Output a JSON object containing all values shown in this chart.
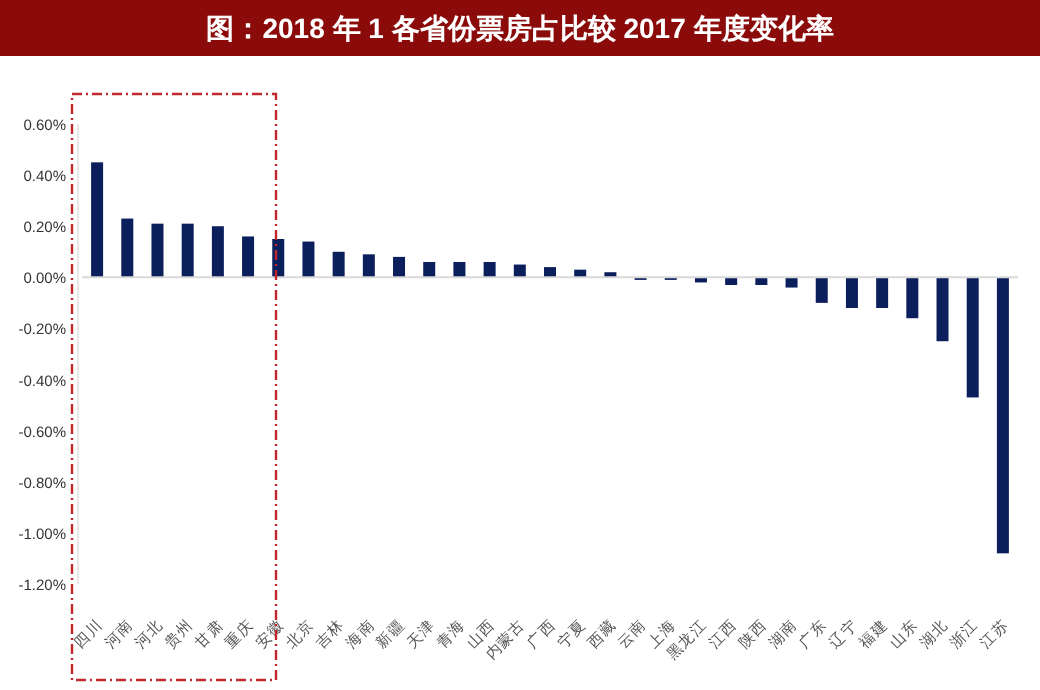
{
  "chart_data": {
    "type": "bar",
    "title": "图：2018 年 1 各省份票房占比较 2017 年度变化率",
    "categories": [
      "四川",
      "河南",
      "河北",
      "贵州",
      "甘肃",
      "重庆",
      "安徽",
      "北京",
      "吉林",
      "海南",
      "新疆",
      "天津",
      "青海",
      "山西",
      "内蒙古",
      "广西",
      "宁夏",
      "西藏",
      "云南",
      "上海",
      "黑龙江",
      "江西",
      "陕西",
      "湖南",
      "广东",
      "辽宁",
      "福建",
      "山东",
      "湖北",
      "浙江",
      "江苏"
    ],
    "values": [
      0.45,
      0.23,
      0.21,
      0.21,
      0.2,
      0.16,
      0.15,
      0.14,
      0.1,
      0.09,
      0.08,
      0.06,
      0.06,
      0.06,
      0.05,
      0.04,
      0.03,
      0.02,
      -0.01,
      -0.01,
      -0.02,
      -0.03,
      -0.03,
      -0.04,
      -0.1,
      -0.12,
      -0.12,
      -0.16,
      -0.25,
      -0.47,
      -1.08
    ],
    "color": "#0b1f5c",
    "ylim": [
      -1.2,
      0.6
    ],
    "yticks": [
      {
        "value": 0.6,
        "label": "0.60%"
      },
      {
        "value": 0.4,
        "label": "0.40%"
      },
      {
        "value": 0.2,
        "label": "0.20%"
      },
      {
        "value": 0,
        "label": "0.00%"
      },
      {
        "value": -0.2,
        "label": "-0.20%"
      },
      {
        "value": -0.4,
        "label": "-0.40%"
      },
      {
        "value": -0.6,
        "label": "-0.60%"
      },
      {
        "value": -0.8,
        "label": "-0.80%"
      },
      {
        "value": -1.0,
        "label": "-1.00%"
      },
      {
        "value": -1.2,
        "label": "-1.20%"
      }
    ]
  }
}
